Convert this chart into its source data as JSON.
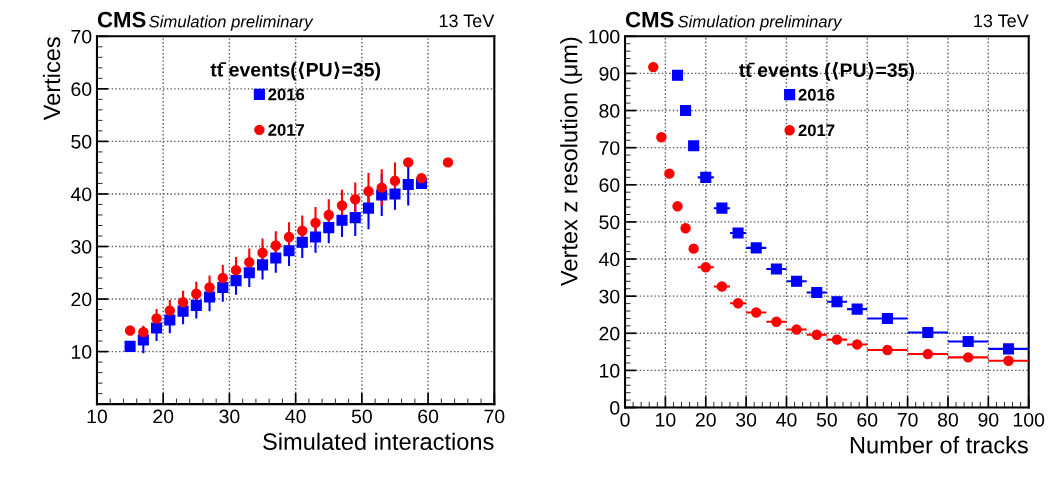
{
  "chart_data": [
    {
      "type": "scatter",
      "xlabel": "Simulated interactions",
      "ylabel": "Vertices",
      "xlim": [
        10,
        70
      ],
      "ylim": [
        0,
        70
      ],
      "xticks": [
        10,
        20,
        30,
        40,
        50,
        60,
        70
      ],
      "yticks": [
        10,
        20,
        30,
        40,
        50,
        60,
        70
      ],
      "grid": true,
      "legend": "top",
      "annotations": [
        "CMS",
        "Simulation preliminary",
        "13 TeV",
        "tt̄ events(⟨PU⟩=35)"
      ],
      "series": [
        {
          "name": "2016",
          "color": "#0000ff",
          "marker": "square",
          "x": [
            15,
            17,
            19,
            21,
            23,
            25,
            27,
            29,
            31,
            33,
            35,
            37,
            39,
            41,
            43,
            45,
            47,
            49,
            51,
            53,
            55,
            57,
            59
          ],
          "values": [
            11,
            12.2,
            14.5,
            16,
            17.7,
            18.8,
            20.4,
            22.2,
            23.5,
            25,
            26.5,
            27.8,
            29.2,
            30.8,
            31.8,
            33.6,
            35,
            35.5,
            37.3,
            39.8,
            40,
            41.8,
            42
          ],
          "errors": [
            1,
            2.5,
            2.5,
            2.5,
            2.5,
            2.5,
            2.7,
            2.7,
            2.7,
            2.7,
            2.8,
            2.8,
            2.9,
            3,
            3,
            3,
            3.2,
            3.5,
            4,
            4,
            3,
            4,
            1
          ]
        },
        {
          "name": "2017",
          "color": "#ff0000",
          "marker": "circle",
          "x": [
            15,
            17,
            19,
            21,
            23,
            25,
            27,
            29,
            31,
            33,
            35,
            37,
            39,
            41,
            43,
            45,
            47,
            49,
            51,
            53,
            55,
            57,
            59,
            63
          ],
          "values": [
            14,
            13.7,
            16.3,
            17.8,
            19.4,
            21,
            22.2,
            24,
            25.5,
            27,
            28.8,
            30.2,
            31.8,
            33,
            34.5,
            36,
            37.8,
            39,
            40.5,
            41.2,
            42.5,
            46,
            43,
            46
          ],
          "errors": [
            0.5,
            1.2,
            1.8,
            2,
            2.2,
            2.3,
            2.3,
            2.5,
            2.5,
            2.6,
            2.7,
            2.7,
            2.8,
            2.9,
            3,
            3,
            3,
            3.2,
            3.5,
            3.5,
            3.5,
            0.5,
            0.5,
            0.5
          ]
        }
      ]
    },
    {
      "type": "scatter",
      "xlabel": "Number of tracks",
      "ylabel": "Vertex z resolution (μm)",
      "xlim": [
        0,
        100
      ],
      "ylim": [
        0,
        100
      ],
      "xticks": [
        0,
        10,
        20,
        30,
        40,
        50,
        60,
        70,
        80,
        90,
        100
      ],
      "yticks": [
        0,
        10,
        20,
        30,
        40,
        50,
        60,
        70,
        80,
        90,
        100
      ],
      "grid": true,
      "legend": "top",
      "annotations": [
        "CMS",
        "Simulation preliminary",
        "13 TeV",
        "tt̄ events (⟨PU⟩=35)"
      ],
      "series": [
        {
          "name": "2016",
          "color": "#0000ff",
          "marker": "square",
          "x": [
            13,
            15,
            17,
            20,
            24,
            28,
            32.5,
            37.5,
            42.5,
            47.5,
            52.5,
            57.5,
            65,
            75,
            85,
            95
          ],
          "values": [
            89.5,
            80,
            70.5,
            62,
            53.7,
            47,
            43,
            37.3,
            34,
            31,
            28.5,
            26.5,
            24,
            20.2,
            17.8,
            15.8
          ],
          "xerrors": [
            1,
            1,
            1,
            2,
            2,
            2,
            2.5,
            2.5,
            2.5,
            2.5,
            2.5,
            2.5,
            5,
            5,
            5,
            5
          ]
        },
        {
          "name": "2017",
          "color": "#ff0000",
          "marker": "circle",
          "x": [
            7,
            9,
            11,
            13,
            15,
            17,
            20,
            24,
            28,
            32.5,
            37.5,
            42.5,
            47.5,
            52.5,
            57.5,
            65,
            75,
            85,
            95
          ],
          "values": [
            91.7,
            72.8,
            63,
            54.2,
            48.3,
            42.8,
            37.8,
            32.6,
            28.1,
            25.6,
            23.1,
            21,
            19.6,
            18.3,
            17,
            15.5,
            14.4,
            13.5,
            12.6
          ],
          "xerrors": [
            1,
            1,
            1,
            1,
            1,
            1,
            2,
            2,
            2,
            2.5,
            2.5,
            2.5,
            2.5,
            2.5,
            2.5,
            5,
            5,
            5,
            5
          ]
        }
      ]
    }
  ]
}
